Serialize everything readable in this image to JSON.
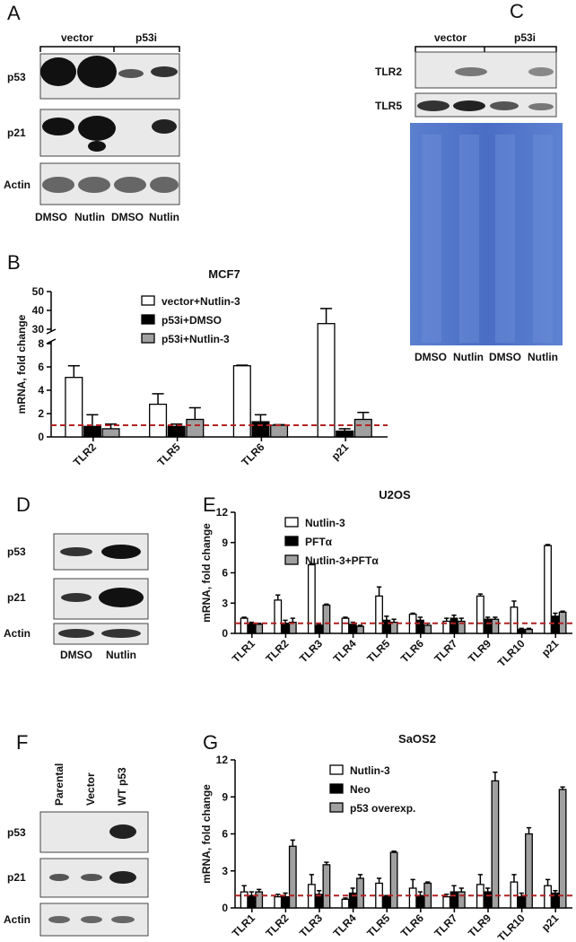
{
  "panels": [
    "A",
    "B",
    "C",
    "D",
    "E",
    "F",
    "G"
  ],
  "blot_a": {
    "groups": [
      "vector",
      "p53i"
    ],
    "rows": [
      "p53",
      "p21",
      "Actin"
    ],
    "lanes": [
      "DMSO",
      "Nutlin",
      "DMSO",
      "Nutlin"
    ]
  },
  "blot_c": {
    "groups": [
      "vector",
      "p53i"
    ],
    "rows": [
      "TLR2",
      "TLR5"
    ],
    "lanes": [
      "DMSO",
      "Nutlin",
      "DMSO",
      "Nutlin"
    ]
  },
  "blot_d": {
    "rows": [
      "p53",
      "p21",
      "Actin"
    ],
    "lanes": [
      "DMSO",
      "Nutlin"
    ]
  },
  "blot_f": {
    "lanes": [
      "Parental",
      "Vector",
      "WT p53"
    ],
    "rows": [
      "p53",
      "p21",
      "Actin"
    ]
  },
  "chart_data": [
    {
      "type": "bar",
      "title": "MCF7",
      "ylabel": "mRNA, fold change",
      "categories": [
        "TLR2",
        "TLR5",
        "TLR6",
        "p21"
      ],
      "series": [
        {
          "name": "vector+Nutlin-3",
          "color": "#ffffff",
          "values": [
            5.1,
            2.8,
            6.1,
            33
          ],
          "errors": [
            1.0,
            0.9,
            0.05,
            8
          ]
        },
        {
          "name": "p53i+DMSO",
          "color": "#000000",
          "values": [
            0.9,
            0.9,
            1.3,
            0.5
          ],
          "errors": [
            1.0,
            0.2,
            0.6,
            0.2
          ]
        },
        {
          "name": "p53i+Nutlin-3",
          "color": "#a0a0a0",
          "values": [
            0.7,
            1.5,
            1.0,
            1.5
          ],
          "errors": [
            0.4,
            1.0,
            0.05,
            0.6
          ]
        }
      ],
      "ylim": [
        0,
        50
      ],
      "ybreak": [
        8,
        30
      ],
      "yticks": [
        0,
        2,
        4,
        6,
        8,
        30,
        40,
        50
      ],
      "reference_line": 1,
      "reference_color": "#b22222"
    },
    {
      "type": "bar",
      "title": "U2OS",
      "ylabel": "mRNA, fold change",
      "categories": [
        "TLR1",
        "TLR2",
        "TLR3",
        "TLR4",
        "TLR5",
        "TLR6",
        "TLR7",
        "TLR9",
        "TLR10",
        "p21"
      ],
      "series": [
        {
          "name": "Nutlin-3",
          "color": "#ffffff",
          "values": [
            1.5,
            3.3,
            6.8,
            1.5,
            3.7,
            1.9,
            1.2,
            3.7,
            2.6,
            8.7
          ],
          "errors": [
            0.1,
            0.5,
            0.1,
            0.1,
            0.9,
            0.1,
            0.3,
            0.2,
            0.6,
            0.1
          ]
        },
        {
          "name": "PFTα",
          "color": "#000000",
          "values": [
            1.0,
            1.0,
            0.8,
            0.9,
            1.3,
            1.3,
            1.5,
            1.4,
            0.4,
            1.7
          ],
          "errors": [
            0.1,
            0.3,
            0.1,
            0.2,
            0.4,
            0.3,
            0.3,
            0.2,
            0.1,
            0.3
          ]
        },
        {
          "name": "Nutlin-3+PFTα",
          "color": "#a0a0a0",
          "values": [
            0.9,
            1.1,
            2.8,
            0.7,
            1.1,
            0.8,
            1.2,
            1.4,
            0.4,
            2.1
          ],
          "errors": [
            0.1,
            0.4,
            0.1,
            0.1,
            0.3,
            0.2,
            0.3,
            0.2,
            0.1,
            0.1
          ]
        }
      ],
      "ylim": [
        0,
        12
      ],
      "yticks": [
        0,
        3,
        6,
        9,
        12
      ],
      "reference_line": 1,
      "reference_color": "#b22222"
    },
    {
      "type": "bar",
      "title": "SaOS2",
      "ylabel": "mRNA, fold change",
      "categories": [
        "TLR1",
        "TLR2",
        "TLR3",
        "TLR4",
        "TLR5",
        "TLR6",
        "TLR7",
        "TLR9",
        "TLR10",
        "p21"
      ],
      "series": [
        {
          "name": "Nutlin-3",
          "color": "#ffffff",
          "values": [
            1.3,
            0.9,
            1.9,
            0.7,
            2.0,
            1.6,
            0.9,
            1.9,
            2.1,
            1.8
          ],
          "errors": [
            0.5,
            0.2,
            0.8,
            0.1,
            0.4,
            0.7,
            0.2,
            0.8,
            0.6,
            0.5
          ]
        },
        {
          "name": "Neo",
          "color": "#000000",
          "values": [
            1.0,
            0.9,
            1.1,
            1.2,
            0.9,
            1.0,
            1.3,
            1.3,
            0.9,
            1.2
          ],
          "errors": [
            0.3,
            0.3,
            0.3,
            0.4,
            0.1,
            0.3,
            0.5,
            0.3,
            0.3,
            0.2
          ]
        },
        {
          "name": "p53 overexp.",
          "color": "#a0a0a0",
          "values": [
            1.3,
            5.0,
            3.5,
            2.4,
            4.5,
            2.0,
            1.3,
            10.3,
            6.0,
            9.6
          ],
          "errors": [
            0.2,
            0.5,
            0.2,
            0.3,
            0.1,
            0.1,
            0.3,
            0.7,
            0.5,
            0.2
          ]
        }
      ],
      "ylim": [
        0,
        12
      ],
      "yticks": [
        0,
        3,
        6,
        9,
        12
      ],
      "reference_line": 1,
      "reference_color": "#b22222"
    }
  ]
}
